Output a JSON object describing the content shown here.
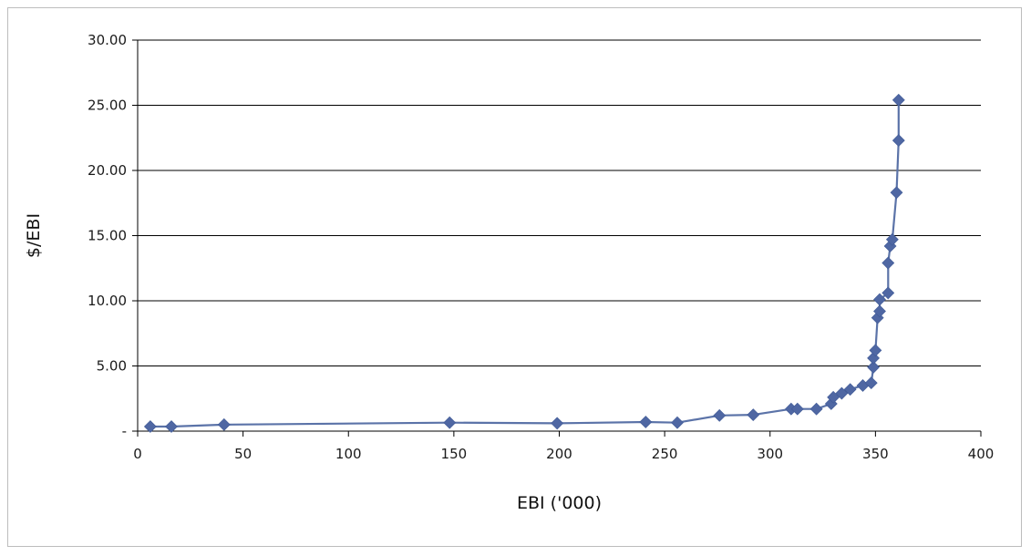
{
  "chart_data": {
    "type": "scatter",
    "xlabel": "EBI ('000)",
    "ylabel": "$/EBI",
    "xlim": [
      0,
      400
    ],
    "ylim": [
      0,
      30
    ],
    "x_ticks": [
      0,
      50,
      100,
      150,
      200,
      250,
      300,
      350,
      400
    ],
    "y_ticks": [
      0,
      5,
      10,
      15,
      20,
      25,
      30
    ],
    "x_tick_labels": [
      "0",
      "50",
      "100",
      "150",
      "200",
      "250",
      "300",
      "350",
      "400"
    ],
    "y_tick_labels": [
      "-",
      "5.00",
      "10.00",
      "15.00",
      "20.00",
      "25.00",
      "30.00"
    ],
    "grid": "horizontal",
    "legend": "none",
    "marker": "diamond",
    "line_color": "#5b73a8",
    "marker_color": "#4f67a3",
    "series": [
      {
        "points": [
          [
            6,
            0.35
          ],
          [
            16,
            0.35
          ],
          [
            41,
            0.5
          ],
          [
            148,
            0.65
          ],
          [
            199,
            0.6
          ],
          [
            241,
            0.7
          ],
          [
            256,
            0.65
          ],
          [
            276,
            1.2
          ],
          [
            292,
            1.25
          ],
          [
            310,
            1.7
          ],
          [
            313,
            1.7
          ],
          [
            322,
            1.7
          ],
          [
            329,
            2.1
          ],
          [
            330,
            2.6
          ],
          [
            334,
            2.9
          ],
          [
            338,
            3.2
          ],
          [
            344,
            3.5
          ],
          [
            348,
            3.7
          ],
          [
            349,
            4.9
          ],
          [
            349,
            5.6
          ],
          [
            350,
            6.2
          ],
          [
            351,
            8.7
          ],
          [
            352,
            9.2
          ],
          [
            352,
            10.1
          ],
          [
            356,
            10.6
          ],
          [
            356,
            12.9
          ],
          [
            357,
            14.2
          ],
          [
            358,
            14.7
          ],
          [
            360,
            18.3
          ],
          [
            361,
            22.3
          ],
          [
            361,
            25.4
          ]
        ]
      }
    ]
  }
}
